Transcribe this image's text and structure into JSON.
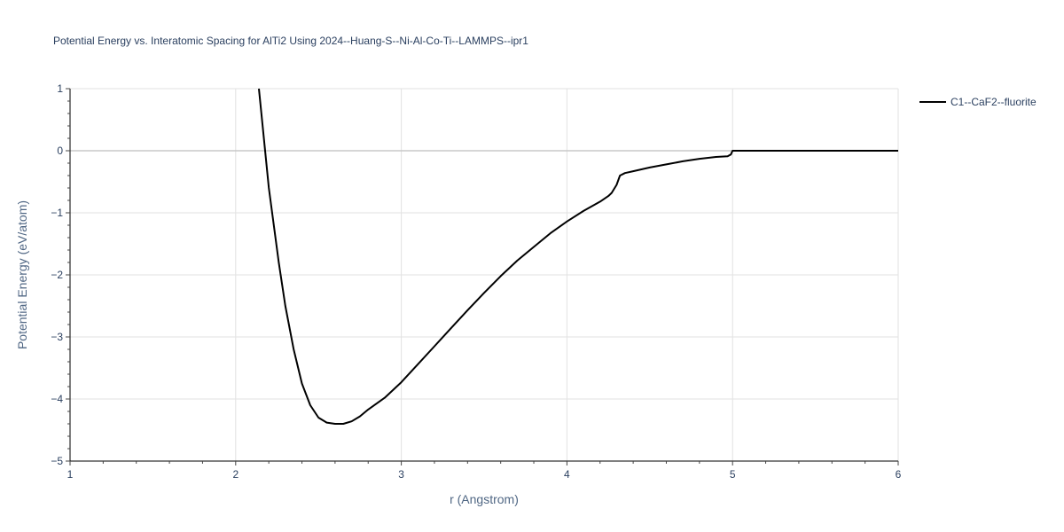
{
  "chart_data": {
    "type": "line",
    "title": "Potential Energy vs. Interatomic Spacing for AlTi2 Using 2024--Huang-S--Ni-Al-Co-Ti--LAMMPS--ipr1",
    "xlabel": "r (Angstrom)",
    "ylabel": "Potential Energy (eV/atom)",
    "xlim": [
      1,
      6
    ],
    "ylim": [
      -5,
      1
    ],
    "xticks": [
      1,
      2,
      3,
      4,
      5,
      6
    ],
    "xtick_labels": [
      "1",
      "2",
      "3",
      "4",
      "5",
      "6"
    ],
    "yticks": [
      -5,
      -4,
      -3,
      -2,
      -1,
      0,
      1
    ],
    "ytick_labels": [
      "−5",
      "−4",
      "−3",
      "−2",
      "−1",
      "0",
      "1"
    ],
    "grid": true,
    "legend_position": "top-right, outside plot",
    "series": [
      {
        "name": "C1--CaF2--fluorite",
        "color": "#000000",
        "x": [
          2.14,
          2.17,
          2.2,
          2.23,
          2.26,
          2.3,
          2.35,
          2.4,
          2.45,
          2.5,
          2.55,
          2.6,
          2.65,
          2.7,
          2.75,
          2.8,
          2.9,
          3.0,
          3.1,
          3.2,
          3.3,
          3.4,
          3.5,
          3.6,
          3.7,
          3.8,
          3.9,
          4.0,
          4.1,
          4.2,
          4.25,
          4.27,
          4.3,
          4.32,
          4.35,
          4.4,
          4.5,
          4.6,
          4.7,
          4.8,
          4.9,
          4.97,
          4.99,
          5.0,
          5.1,
          5.3,
          5.5,
          5.7,
          6.0
        ],
        "y": [
          1.0,
          0.2,
          -0.6,
          -1.2,
          -1.8,
          -2.5,
          -3.2,
          -3.75,
          -4.1,
          -4.3,
          -4.38,
          -4.4,
          -4.4,
          -4.36,
          -4.28,
          -4.17,
          -3.98,
          -3.73,
          -3.44,
          -3.15,
          -2.86,
          -2.57,
          -2.29,
          -2.02,
          -1.77,
          -1.55,
          -1.33,
          -1.14,
          -0.97,
          -0.82,
          -0.73,
          -0.68,
          -0.55,
          -0.4,
          -0.36,
          -0.33,
          -0.27,
          -0.22,
          -0.17,
          -0.13,
          -0.1,
          -0.09,
          -0.06,
          0.0,
          0.0,
          0.0,
          0.0,
          0.0,
          0.0
        ]
      }
    ]
  }
}
